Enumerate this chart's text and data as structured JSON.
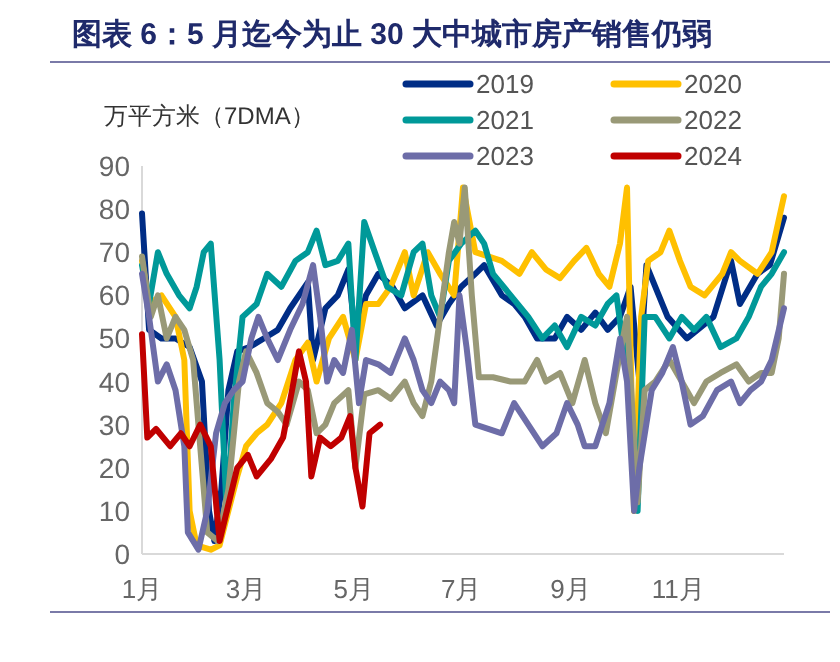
{
  "chart_data": {
    "type": "line",
    "title": "图表 6：5 月迄今为止 30 大中城市房产销售仍弱",
    "ylabel": "万平方米（7DMA）",
    "xlim": [
      "--01-01",
      "--12-31"
    ],
    "ylim": [
      0,
      90
    ],
    "xticks": [
      {
        "value": "--01-01",
        "label": "1月"
      },
      {
        "value": "--03-01",
        "label": "3月"
      },
      {
        "value": "--05-01",
        "label": "5月"
      },
      {
        "value": "--07-01",
        "label": "7月"
      },
      {
        "value": "--09-01",
        "label": "9月"
      },
      {
        "value": "--11-01",
        "label": "11月"
      }
    ],
    "yticks": [
      0,
      10,
      20,
      30,
      40,
      50,
      60,
      70,
      80,
      90
    ],
    "legend": "top right",
    "series": [
      {
        "name": "2019",
        "color": "#002d86",
        "x": [
          "--01-01",
          "--01-05",
          "--01-12",
          "--01-20",
          "--01-28",
          "--02-04",
          "--02-08",
          "--02-11",
          "--02-15",
          "--02-19",
          "--02-24",
          "--03-03",
          "--03-11",
          "--03-19",
          "--03-26",
          "--04-05",
          "--04-08",
          "--04-15",
          "--04-22",
          "--04-28",
          "--05-02",
          "--05-08",
          "--05-15",
          "--05-23",
          "--05-30",
          "--06-09",
          "--06-17",
          "--06-24",
          "--07-01",
          "--07-09",
          "--07-14",
          "--07-24",
          "--07-31",
          "--08-06",
          "--08-13",
          "--08-23",
          "--08-30",
          "--09-07",
          "--09-15",
          "--09-22",
          "--09-29",
          "--10-05",
          "--10-10",
          "--10-14",
          "--10-26",
          "--11-06",
          "--11-21",
          "--12-01",
          "--12-06",
          "--12-16",
          "--12-23",
          "--12-31"
        ],
        "values": [
          79,
          52,
          50,
          50,
          48,
          40,
          10,
          3,
          15,
          38,
          47,
          48,
          50,
          52,
          57,
          63,
          45,
          57,
          60,
          66,
          50,
          60,
          65,
          62,
          57,
          60,
          53,
          58,
          62,
          65,
          67,
          60,
          58,
          55,
          50,
          50,
          55,
          52,
          56,
          52,
          55,
          62,
          40,
          67,
          55,
          50,
          55,
          68,
          58,
          65,
          67,
          78
        ]
      },
      {
        "name": "2020",
        "color": "#ffc000",
        "x": [
          "--01-01",
          "--01-05",
          "--01-12",
          "--01-20",
          "--01-25",
          "--01-28",
          "--02-01",
          "--02-09",
          "--02-14",
          "--02-19",
          "--02-24",
          "--03-01",
          "--03-07",
          "--03-13",
          "--03-21",
          "--03-29",
          "--04-05",
          "--04-10",
          "--04-17",
          "--04-25",
          "--05-02",
          "--05-08",
          "--05-15",
          "--05-22",
          "--05-30",
          "--06-04",
          "--06-12",
          "--06-19",
          "--06-27",
          "--07-02",
          "--07-09",
          "--07-24",
          "--08-03",
          "--08-10",
          "--08-18",
          "--08-26",
          "--09-03",
          "--09-10",
          "--09-17",
          "--09-23",
          "--09-29",
          "--10-03",
          "--10-07",
          "--10-11",
          "--10-15",
          "--10-22",
          "--10-27",
          "--11-02",
          "--11-08",
          "--11-16",
          "--11-26",
          "--12-01",
          "--12-06",
          "--12-16",
          "--12-24",
          "--12-31"
        ],
        "values": [
          68,
          58,
          60,
          55,
          45,
          10,
          2,
          1,
          2,
          10,
          18,
          25,
          28,
          30,
          35,
          45,
          49,
          40,
          50,
          55,
          45,
          58,
          58,
          62,
          70,
          60,
          70,
          65,
          60,
          85,
          70,
          68,
          65,
          70,
          66,
          64,
          68,
          71,
          65,
          62,
          72,
          85,
          10,
          55,
          68,
          70,
          75,
          68,
          62,
          60,
          65,
          70,
          68,
          65,
          70,
          83
        ]
      },
      {
        "name": "2021",
        "color": "#009999",
        "x": [
          "--01-01",
          "--01-05",
          "--01-10",
          "--01-15",
          "--01-22",
          "--01-28",
          "--02-01",
          "--02-05",
          "--02-09",
          "--02-14",
          "--02-18",
          "--02-22",
          "--02-27",
          "--03-07",
          "--03-13",
          "--03-21",
          "--03-29",
          "--04-05",
          "--04-10",
          "--04-15",
          "--04-22",
          "--04-28",
          "--05-02",
          "--05-07",
          "--05-13",
          "--05-20",
          "--05-28",
          "--06-04",
          "--06-09",
          "--06-14",
          "--06-19",
          "--06-24",
          "--07-01",
          "--07-09",
          "--07-14",
          "--07-19",
          "--07-29",
          "--08-08",
          "--08-16",
          "--08-23",
          "--08-30",
          "--09-07",
          "--09-15",
          "--09-22",
          "--09-27",
          "--10-01",
          "--10-05",
          "--10-09",
          "--10-13",
          "--10-19",
          "--10-27",
          "--11-03",
          "--11-10",
          "--11-17",
          "--11-25",
          "--12-04",
          "--12-11",
          "--12-18",
          "--12-24",
          "--12-31"
        ],
        "values": [
          67,
          58,
          70,
          65,
          60,
          57,
          62,
          70,
          72,
          45,
          10,
          35,
          55,
          58,
          65,
          62,
          68,
          70,
          75,
          67,
          68,
          72,
          45,
          77,
          70,
          62,
          60,
          70,
          72,
          60,
          55,
          68,
          72,
          75,
          72,
          65,
          60,
          55,
          50,
          53,
          48,
          55,
          53,
          58,
          60,
          48,
          35,
          10,
          55,
          55,
          50,
          55,
          52,
          55,
          48,
          50,
          55,
          62,
          65,
          70
        ]
      },
      {
        "name": "2022",
        "color": "#999977",
        "x": [
          "--01-01",
          "--01-06",
          "--01-10",
          "--01-15",
          "--01-20",
          "--01-25",
          "--01-30",
          "--02-03",
          "--02-07",
          "--02-13",
          "--02-19",
          "--02-25",
          "--03-01",
          "--03-07",
          "--03-13",
          "--03-19",
          "--03-24",
          "--03-31",
          "--04-05",
          "--04-10",
          "--04-15",
          "--04-20",
          "--04-28",
          "--05-02",
          "--05-07",
          "--05-15",
          "--05-22",
          "--05-30",
          "--06-04",
          "--06-09",
          "--06-14",
          "--06-19",
          "--06-24",
          "--06-27",
          "--06-30",
          "--07-03",
          "--07-07",
          "--07-11",
          "--07-19",
          "--07-29",
          "--08-06",
          "--08-13",
          "--08-18",
          "--08-26",
          "--09-02",
          "--09-09",
          "--09-15",
          "--09-21",
          "--09-27",
          "--10-03",
          "--10-09",
          "--10-13",
          "--10-19",
          "--10-27",
          "--11-03",
          "--11-10",
          "--11-17",
          "--11-25",
          "--12-04",
          "--12-11",
          "--12-18",
          "--12-24",
          "--12-28",
          "--12-31"
        ],
        "values": [
          69,
          55,
          60,
          50,
          55,
          52,
          45,
          25,
          5,
          3,
          15,
          40,
          47,
          42,
          35,
          33,
          30,
          40,
          38,
          28,
          30,
          35,
          38,
          20,
          37,
          38,
          36,
          40,
          35,
          32,
          40,
          55,
          70,
          77,
          72,
          85,
          60,
          41,
          41,
          40,
          40,
          45,
          40,
          42,
          35,
          45,
          35,
          28,
          42,
          55,
          12,
          38,
          40,
          45,
          40,
          35,
          40,
          42,
          44,
          40,
          42,
          42,
          50,
          65
        ]
      },
      {
        "name": "2023",
        "color": "#6d6da8",
        "x": [
          "--01-01",
          "--01-05",
          "--01-10",
          "--01-15",
          "--01-20",
          "--01-25",
          "--01-27",
          "--02-02",
          "--02-07",
          "--02-12",
          "--02-17",
          "--02-22",
          "--02-27",
          "--03-04",
          "--03-08",
          "--03-13",
          "--03-19",
          "--03-26",
          "--04-02",
          "--04-08",
          "--04-12",
          "--04-16",
          "--04-20",
          "--04-25",
          "--04-30",
          "--05-04",
          "--05-08",
          "--05-15",
          "--05-22",
          "--05-30",
          "--06-04",
          "--06-09",
          "--06-14",
          "--06-19",
          "--06-24",
          "--06-27",
          "--06-30",
          "--07-04",
          "--07-09",
          "--07-24",
          "--07-31",
          "--08-08",
          "--08-16",
          "--08-24",
          "--08-30",
          "--09-05",
          "--09-09",
          "--09-15",
          "--09-23",
          "--09-29",
          "--10-03",
          "--10-07",
          "--10-10",
          "--10-17",
          "--10-23",
          "--10-29",
          "--11-03",
          "--11-08",
          "--11-15",
          "--11-23",
          "--12-01",
          "--12-06",
          "--12-12",
          "--12-18",
          "--12-24",
          "--12-31"
        ],
        "values": [
          65,
          55,
          40,
          44,
          38,
          25,
          5,
          1,
          10,
          28,
          35,
          38,
          40,
          50,
          55,
          50,
          45,
          52,
          58,
          67,
          55,
          40,
          45,
          42,
          52,
          35,
          45,
          44,
          42,
          50,
          45,
          38,
          35,
          40,
          38,
          35,
          60,
          48,
          30,
          28,
          35,
          30,
          25,
          28,
          35,
          30,
          25,
          25,
          35,
          50,
          40,
          10,
          20,
          38,
          42,
          48,
          40,
          30,
          32,
          38,
          40,
          35,
          38,
          40,
          45,
          57
        ]
      },
      {
        "name": "2024",
        "color": "#c00000",
        "x": [
          "--01-01",
          "--01-04",
          "--01-09",
          "--01-17",
          "--01-23",
          "--01-28",
          "--02-03",
          "--02-09",
          "--02-14",
          "--02-24",
          "--03-02",
          "--03-07",
          "--03-15",
          "--03-22",
          "--03-28",
          "--03-31",
          "--04-04",
          "--04-07",
          "--04-12",
          "--04-18",
          "--04-24",
          "--04-29",
          "--05-02",
          "--05-06",
          "--05-10",
          "--05-16"
        ],
        "values": [
          51,
          27,
          29,
          25,
          28,
          25,
          30,
          25,
          3,
          20,
          23,
          18,
          22,
          27,
          40,
          47,
          40,
          18,
          27,
          25,
          27,
          32,
          20,
          11,
          28,
          30
        ]
      }
    ]
  }
}
